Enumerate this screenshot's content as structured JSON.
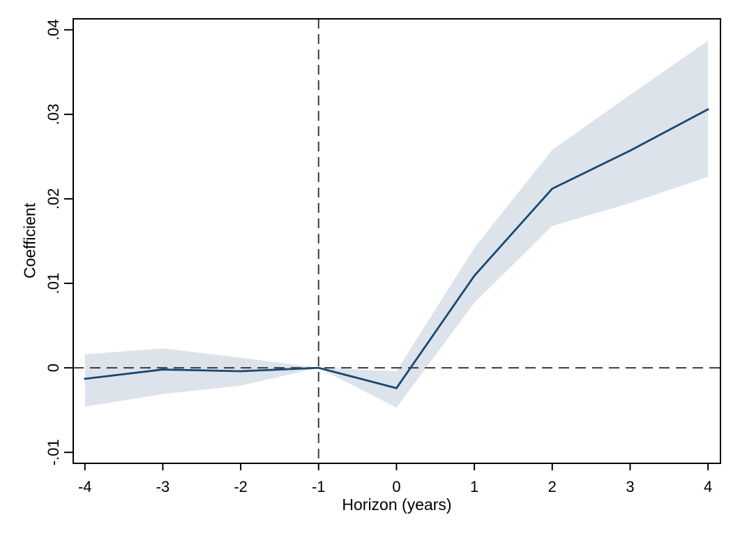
{
  "figure": {
    "background": "#ffffff"
  },
  "chart_data": {
    "type": "line",
    "subtype": "event-study-coefficient-plot",
    "title": "",
    "xlabel": "Horizon (years)",
    "ylabel": "Coefficient",
    "x": [
      -4,
      -3,
      -2,
      -1,
      0,
      1,
      2,
      3,
      4
    ],
    "series": [
      {
        "name": "coefficient",
        "values": [
          -0.0013,
          -0.0002,
          -0.0004,
          0,
          -0.0024,
          0.0109,
          0.0212,
          0.0257,
          0.0306
        ]
      }
    ],
    "ci_low": [
      -0.0046,
      -0.0031,
      -0.0021,
      0,
      -0.0047,
      0.0077,
      0.0168,
      0.0195,
      0.0226
    ],
    "ci_high": [
      0.0016,
      0.0023,
      0.0012,
      0,
      -0.0004,
      0.0142,
      0.0258,
      0.0323,
      0.0387
    ],
    "x_ticks": {
      "values": [
        -4,
        -3,
        -2,
        -1,
        0,
        1,
        2,
        3,
        4
      ],
      "labels": [
        "-4",
        "-3",
        "-2",
        "-1",
        "0",
        "1",
        "2",
        "3",
        "4"
      ]
    },
    "y_ticks": {
      "values": [
        -0.01,
        0,
        0.01,
        0.02,
        0.03,
        0.04
      ],
      "labels": [
        "-.01",
        "0",
        ".01",
        ".02",
        ".03",
        ".04"
      ]
    },
    "reference_lines": {
      "vertical_x": -1,
      "horizontal_y": 0,
      "style": "dashed"
    },
    "xlim": [
      -4.15,
      4.16
    ],
    "ylim": [
      -0.0113,
      0.0413
    ],
    "grid": "off",
    "legend": "none",
    "colors": {
      "line": "#1a476f",
      "band": "#dce3eb",
      "reference": "#3a3a3a",
      "axis": "#000000",
      "background": "#ffffff"
    }
  }
}
